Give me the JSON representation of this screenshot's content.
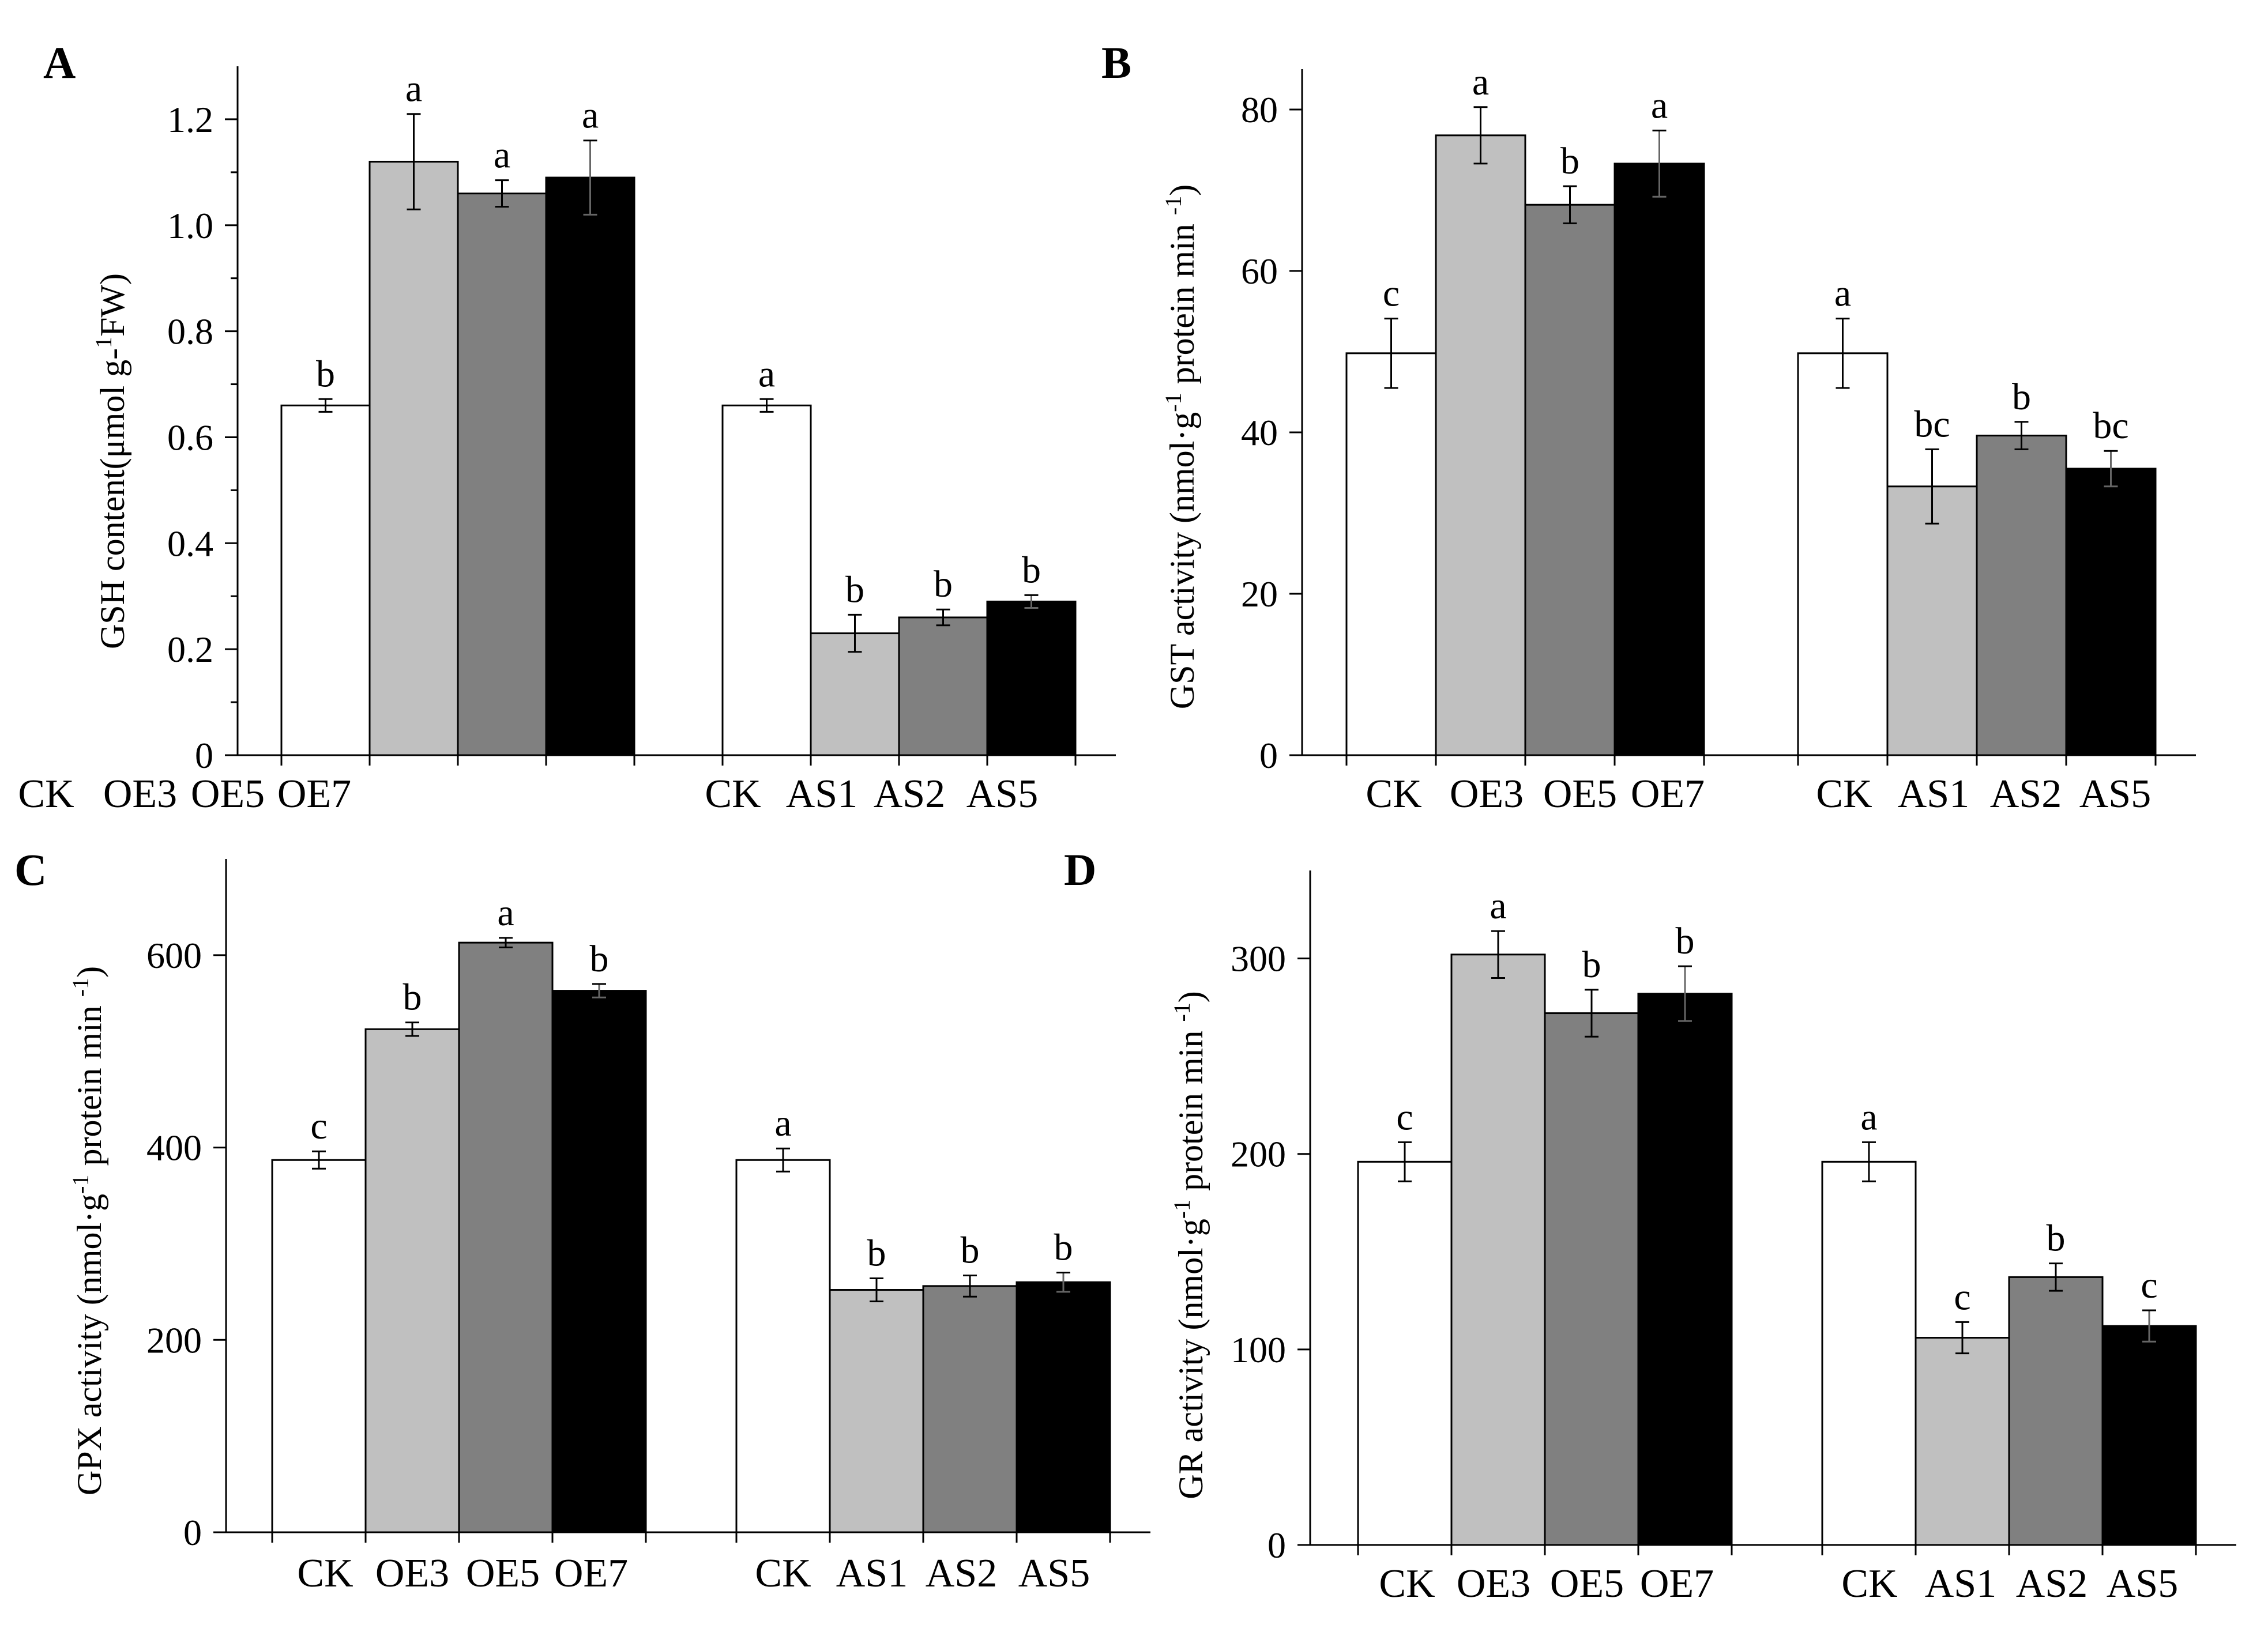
{
  "figure": {
    "panels": [
      "A",
      "B",
      "C",
      "D"
    ]
  },
  "chart_data": [
    {
      "panel": "A",
      "type": "bar",
      "ylabel": "GSH content(μmol g-1FW)",
      "ylabel_parts": {
        "before": "GSH content(μmol g-",
        "sup": "1",
        "after": "FW)"
      },
      "ylim": [
        0,
        1.3
      ],
      "yticks": [
        0,
        0.2,
        0.4,
        0.6,
        0.8,
        1.0,
        1.2
      ],
      "ytick_labels": [
        "0",
        "0.2",
        "0.4",
        "0.6",
        "0.8",
        "1.0",
        "1.2"
      ],
      "minor_ticks": true,
      "groups": [
        {
          "categories": [
            "CK",
            "OE3",
            "OE5",
            "OE7"
          ],
          "values": [
            0.66,
            1.12,
            1.06,
            1.09
          ],
          "errors": [
            0.012,
            0.09,
            0.025,
            0.07
          ],
          "letters": [
            "b",
            "a",
            "a",
            "a"
          ]
        },
        {
          "categories": [
            "CK",
            "AS1",
            "AS2",
            "AS5"
          ],
          "values": [
            0.66,
            0.23,
            0.26,
            0.29
          ],
          "errors": [
            0.012,
            0.035,
            0.015,
            0.012
          ],
          "letters": [
            "a",
            "b",
            "b",
            "b"
          ]
        }
      ],
      "colors": [
        "#ffffff",
        "#c0c0c0",
        "#808080",
        "#000000"
      ]
    },
    {
      "panel": "B",
      "type": "bar",
      "ylabel": "GST activity (nmol·g-1 protein min -1)",
      "ylabel_parts": {
        "before": "GST activity (nmol·g",
        "sup": "-1",
        "middle": " protein min ",
        "sup2": "-1",
        "after": ")"
      },
      "ylim": [
        0,
        85
      ],
      "yticks": [
        0,
        20,
        40,
        60,
        80
      ],
      "ytick_labels": [
        "0",
        "20",
        "40",
        "60",
        "80"
      ],
      "minor_ticks": false,
      "groups": [
        {
          "categories": [
            "CK",
            "OE3",
            "OE5",
            "OE7"
          ],
          "values": [
            49.8,
            76.8,
            68.2,
            73.3
          ],
          "errors": [
            4.3,
            3.5,
            2.3,
            4.1
          ],
          "letters": [
            "c",
            "a",
            "b",
            "a"
          ]
        },
        {
          "categories": [
            "CK",
            "AS1",
            "AS2",
            "AS5"
          ],
          "values": [
            49.8,
            33.3,
            39.6,
            35.5
          ],
          "errors": [
            4.3,
            4.6,
            1.7,
            2.2
          ],
          "letters": [
            "a",
            "bc",
            "b",
            "bc"
          ]
        }
      ],
      "colors": [
        "#ffffff",
        "#c0c0c0",
        "#808080",
        "#000000"
      ]
    },
    {
      "panel": "C",
      "type": "bar",
      "ylabel": "GPX activity (nmol·g-1 protein min -1)",
      "ylabel_parts": {
        "before": "GPX activity (nmol·g",
        "sup": "-1",
        "middle": " protein min ",
        "sup2": "-1",
        "after": ")"
      },
      "ylim": [
        0,
        700
      ],
      "yticks": [
        0,
        200,
        400,
        600
      ],
      "ytick_labels": [
        "0",
        "200",
        "400",
        "600"
      ],
      "minor_ticks": false,
      "groups": [
        {
          "categories": [
            "CK",
            "OE3",
            "OE5",
            "OE7"
          ],
          "values": [
            387,
            523,
            613,
            563
          ],
          "errors": [
            9,
            7,
            5,
            7
          ],
          "letters": [
            "c",
            "b",
            "a",
            "b"
          ]
        },
        {
          "categories": [
            "CK",
            "AS1",
            "AS2",
            "AS5"
          ],
          "values": [
            387,
            252,
            256,
            260
          ],
          "errors": [
            12,
            12,
            11,
            10
          ],
          "letters": [
            "a",
            "b",
            "b",
            "b"
          ]
        }
      ],
      "colors": [
        "#ffffff",
        "#c0c0c0",
        "#808080",
        "#000000"
      ]
    },
    {
      "panel": "D",
      "type": "bar",
      "ylabel": "GR activity (nmol·g-1 protein min -1)",
      "ylabel_parts": {
        "before": "GR activity (nmol·g",
        "sup": "-1",
        "middle": " protein min ",
        "sup2": "-1",
        "after": ")"
      },
      "ylim": [
        0,
        345
      ],
      "yticks": [
        0,
        100,
        200,
        300
      ],
      "ytick_labels": [
        "0",
        "100",
        "200",
        "300"
      ],
      "minor_ticks": false,
      "groups": [
        {
          "categories": [
            "CK",
            "OE3",
            "OE5",
            "OE7"
          ],
          "values": [
            196,
            302,
            272,
            282
          ],
          "errors": [
            10,
            12,
            12,
            14
          ],
          "letters": [
            "c",
            "a",
            "b",
            "b"
          ]
        },
        {
          "categories": [
            "CK",
            "AS1",
            "AS2",
            "AS5"
          ],
          "values": [
            196,
            106,
            137,
            112
          ],
          "errors": [
            10,
            8,
            7,
            8
          ],
          "letters": [
            "a",
            "c",
            "b",
            "c"
          ]
        }
      ],
      "colors": [
        "#ffffff",
        "#c0c0c0",
        "#808080",
        "#000000"
      ]
    }
  ]
}
